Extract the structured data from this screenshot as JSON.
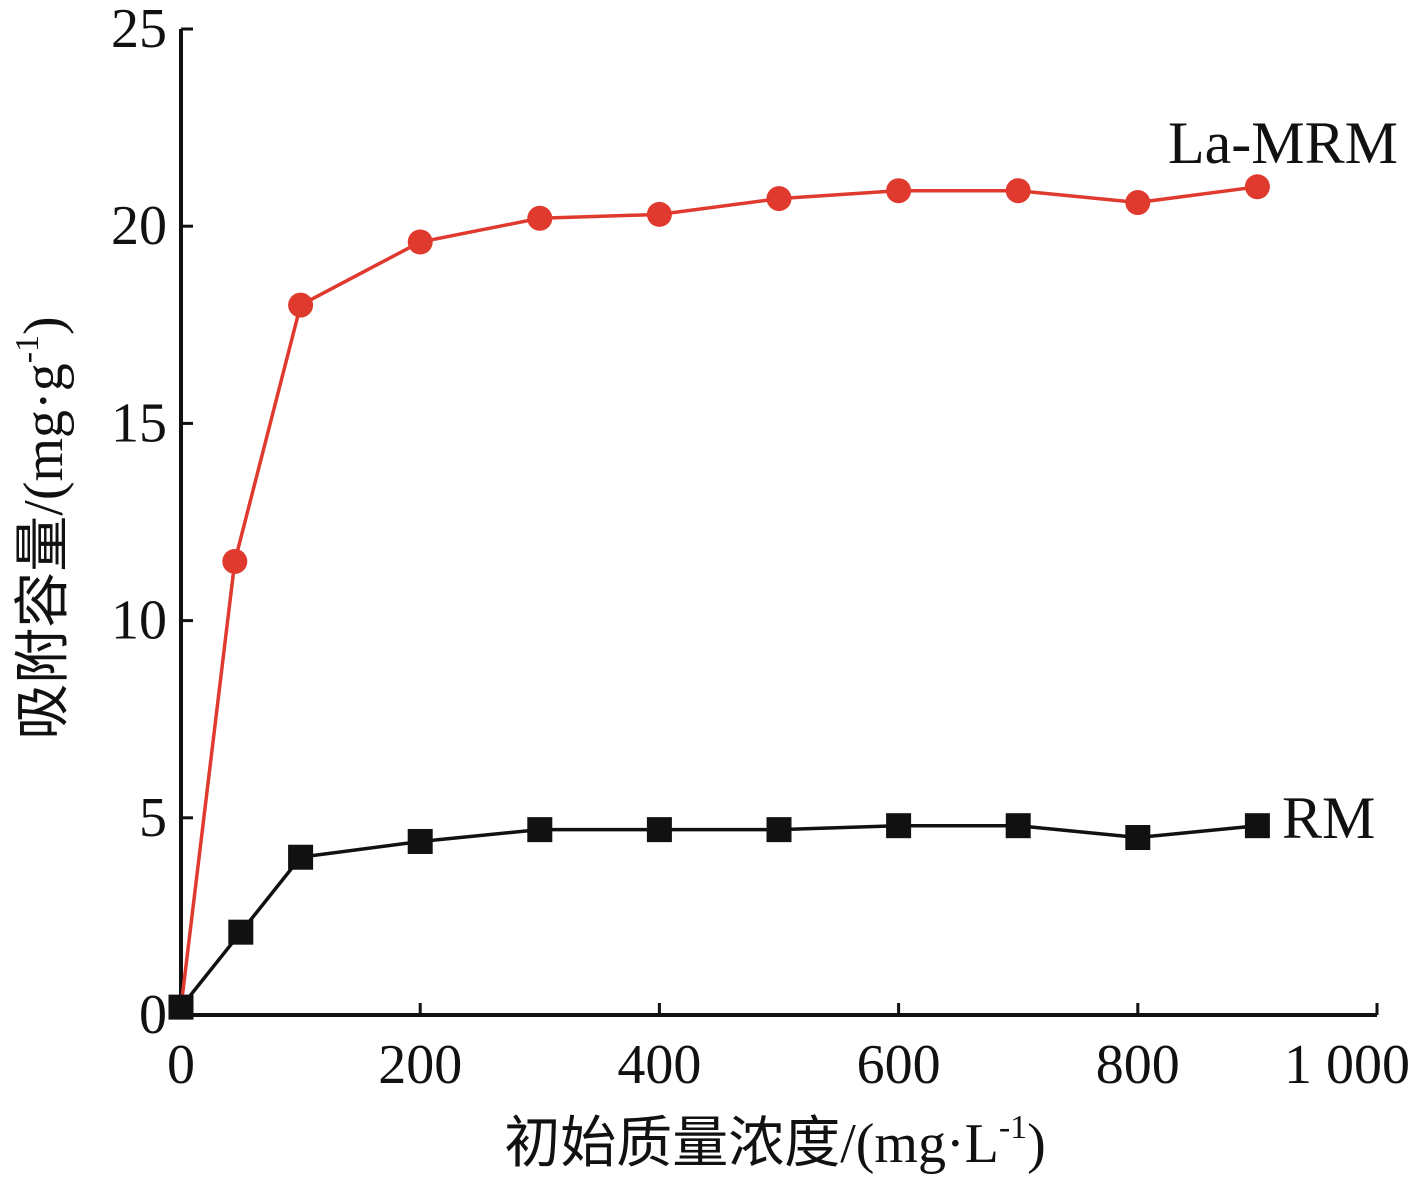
{
  "chart_data": {
    "type": "line",
    "xlabel": "初始质量浓度/(mg·L",
    "xlabel_sup": "-1",
    "xlabel_end": ")",
    "ylabel": "吸附容量/(mg·g",
    "ylabel_sup": "-1",
    "ylabel_end": ")",
    "xlim": [
      0,
      1000
    ],
    "ylim": [
      0,
      25
    ],
    "xticks": [
      0,
      200,
      400,
      600,
      800,
      1000
    ],
    "xtick_labels": [
      "0",
      "200",
      "400",
      "600",
      "800",
      "1 000"
    ],
    "yticks": [
      0,
      5,
      10,
      15,
      20,
      25
    ],
    "ytick_labels": [
      "0",
      "5",
      "10",
      "15",
      "20",
      "25"
    ],
    "grid": false,
    "series": [
      {
        "name": "La-MRM",
        "color": "#e03a2f",
        "marker": "circle",
        "x": [
          0,
          45,
          100,
          200,
          300,
          400,
          500,
          600,
          700,
          800,
          900
        ],
        "y": [
          0.2,
          11.5,
          18.0,
          19.6,
          20.2,
          20.3,
          20.7,
          20.9,
          20.9,
          20.6,
          21.0
        ]
      },
      {
        "name": "RM",
        "color": "#111111",
        "marker": "square",
        "x": [
          0,
          50,
          100,
          200,
          300,
          400,
          500,
          600,
          700,
          800,
          900
        ],
        "y": [
          0.2,
          2.1,
          4.0,
          4.4,
          4.7,
          4.7,
          4.7,
          4.8,
          4.8,
          4.5,
          4.8
        ]
      }
    ]
  }
}
